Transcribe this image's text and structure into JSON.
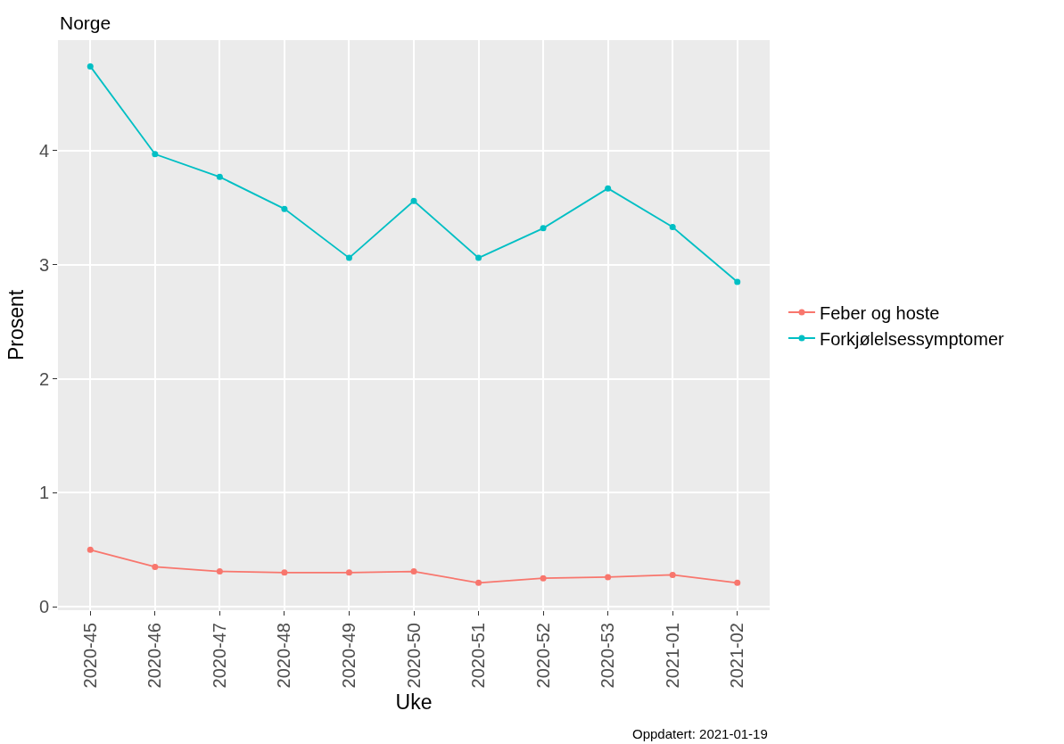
{
  "chart_data": {
    "type": "line",
    "title": "Norge",
    "xlabel": "Uke",
    "ylabel": "Prosent",
    "categories": [
      "2020-45",
      "2020-46",
      "2020-47",
      "2020-48",
      "2020-49",
      "2020-50",
      "2020-51",
      "2020-52",
      "2020-53",
      "2021-01",
      "2021-02"
    ],
    "series": [
      {
        "name": "Feber og hoste",
        "color": "#f8766d",
        "values": [
          0.5,
          0.35,
          0.31,
          0.3,
          0.3,
          0.31,
          0.21,
          0.25,
          0.26,
          0.28,
          0.21
        ]
      },
      {
        "name": "Forkjølelsessymptomer",
        "color": "#00bfc4",
        "values": [
          4.74,
          3.97,
          3.77,
          3.49,
          3.06,
          3.56,
          3.06,
          3.32,
          3.67,
          3.33,
          2.85
        ]
      }
    ],
    "ylim": [
      -0.03,
      4.97
    ],
    "yticks": [
      0,
      1,
      2,
      3,
      4
    ],
    "grid": true,
    "legend": "right",
    "marker": "circle",
    "line_style": "solid",
    "annotations": [
      "Oppdatert: 2021-01-19"
    ]
  }
}
